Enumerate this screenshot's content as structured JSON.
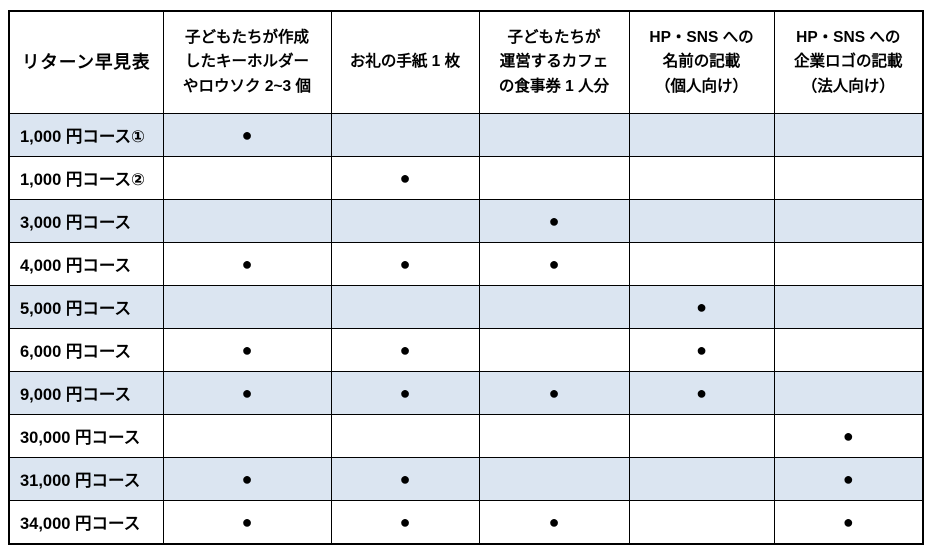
{
  "colors": {
    "shaded_row_bg": "#dbe5f1",
    "plain_row_bg": "#ffffff",
    "border": "#000000",
    "text": "#000000"
  },
  "dot_glyph": "●",
  "table": {
    "title": "リターン早見表",
    "columns": [
      "子どもたちが作成\nしたキーホルダー\nやロウソク 2~3 個",
      "お礼の手紙 1 枚",
      "子どもたちが\n運営するカフェ\nの食事券 1 人分",
      "HP・SNS への\n名前の記載\n（個人向け）",
      "HP・SNS への\n企業ロゴの記載\n（法人向け）"
    ],
    "rows": [
      {
        "label": "1,000 円コース①",
        "cells": [
          "●",
          "",
          "",
          "",
          ""
        ]
      },
      {
        "label": "1,000 円コース②",
        "cells": [
          "",
          "●",
          "",
          "",
          ""
        ]
      },
      {
        "label": "3,000 円コース",
        "cells": [
          "",
          "",
          "●",
          "",
          ""
        ]
      },
      {
        "label": "4,000 円コース",
        "cells": [
          "●",
          "●",
          "●",
          "",
          ""
        ]
      },
      {
        "label": "5,000 円コース",
        "cells": [
          "",
          "",
          "",
          "●",
          ""
        ]
      },
      {
        "label": "6,000 円コース",
        "cells": [
          "●",
          "●",
          "",
          "●",
          ""
        ]
      },
      {
        "label": "9,000 円コース",
        "cells": [
          "●",
          "●",
          "●",
          "●",
          ""
        ]
      },
      {
        "label": "30,000 円コース",
        "cells": [
          "",
          "",
          "",
          "",
          "●"
        ]
      },
      {
        "label": "31,000 円コース",
        "cells": [
          "●",
          "●",
          "",
          "",
          "●"
        ]
      },
      {
        "label": "34,000 円コース",
        "cells": [
          "●",
          "●",
          "●",
          "",
          "●"
        ]
      }
    ]
  }
}
